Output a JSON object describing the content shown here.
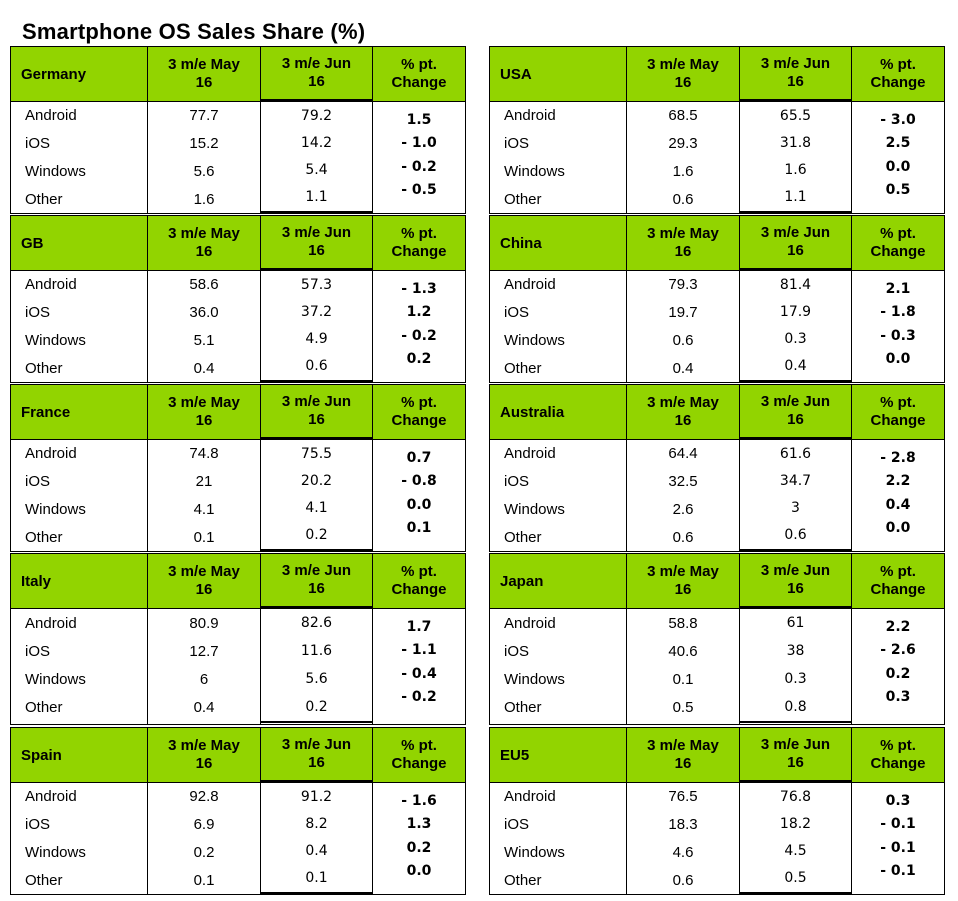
{
  "title": "Smartphone OS Sales Share (%)",
  "header_labels": {
    "col1": "3 m/e May 16",
    "col2": "3 m/e Jun 16",
    "col3": "% pt. Change"
  },
  "chart_data": {
    "type": "table",
    "title": "Smartphone OS Sales Share (%)",
    "columns": [
      "3 m/e May 16",
      "3 m/e Jun 16",
      "% pt. Change"
    ],
    "tables": [
      {
        "region": "Germany",
        "rows": [
          {
            "os": "Android",
            "may": "77.7",
            "jun": "79.2",
            "change": "1.5"
          },
          {
            "os": "iOS",
            "may": "15.2",
            "jun": "14.2",
            "change": "- 1.0"
          },
          {
            "os": "Windows",
            "may": "5.6",
            "jun": "5.4",
            "change": "- 0.2"
          },
          {
            "os": "Other",
            "may": "1.6",
            "jun": "1.1",
            "change": "- 0.5"
          }
        ]
      },
      {
        "region": "USA",
        "rows": [
          {
            "os": "Android",
            "may": "68.5",
            "jun": "65.5",
            "change": "- 3.0"
          },
          {
            "os": "iOS",
            "may": "29.3",
            "jun": "31.8",
            "change": "2.5"
          },
          {
            "os": "Windows",
            "may": "1.6",
            "jun": "1.6",
            "change": "0.0"
          },
          {
            "os": "Other",
            "may": "0.6",
            "jun": "1.1",
            "change": "0.5"
          }
        ]
      },
      {
        "region": "GB",
        "rows": [
          {
            "os": "Android",
            "may": "58.6",
            "jun": "57.3",
            "change": "- 1.3"
          },
          {
            "os": "iOS",
            "may": "36.0",
            "jun": "37.2",
            "change": "1.2"
          },
          {
            "os": "Windows",
            "may": "5.1",
            "jun": "4.9",
            "change": "- 0.2"
          },
          {
            "os": "Other",
            "may": "0.4",
            "jun": "0.6",
            "change": "0.2"
          }
        ]
      },
      {
        "region": "China",
        "rows": [
          {
            "os": "Android",
            "may": "79.3",
            "jun": "81.4",
            "change": "2.1"
          },
          {
            "os": "iOS",
            "may": "19.7",
            "jun": "17.9",
            "change": "- 1.8"
          },
          {
            "os": "Windows",
            "may": "0.6",
            "jun": "0.3",
            "change": "- 0.3"
          },
          {
            "os": "Other",
            "may": "0.4",
            "jun": "0.4",
            "change": "0.0"
          }
        ]
      },
      {
        "region": "France",
        "rows": [
          {
            "os": "Android",
            "may": "74.8",
            "jun": "75.5",
            "change": "0.7"
          },
          {
            "os": "iOS",
            "may": "21",
            "jun": "20.2",
            "change": "- 0.8"
          },
          {
            "os": "Windows",
            "may": "4.1",
            "jun": "4.1",
            "change": "0.0"
          },
          {
            "os": "Other",
            "may": "0.1",
            "jun": "0.2",
            "change": "0.1"
          }
        ]
      },
      {
        "region": "Australia",
        "rows": [
          {
            "os": "Android",
            "may": "64.4",
            "jun": "61.6",
            "change": "- 2.8"
          },
          {
            "os": "iOS",
            "may": "32.5",
            "jun": "34.7",
            "change": "2.2"
          },
          {
            "os": "Windows",
            "may": "2.6",
            "jun": "3",
            "change": "0.4"
          },
          {
            "os": "Other",
            "may": "0.6",
            "jun": "0.6",
            "change": "0.0"
          }
        ]
      },
      {
        "region": "Italy",
        "rows": [
          {
            "os": "Android",
            "may": "80.9",
            "jun": "82.6",
            "change": "1.7"
          },
          {
            "os": "iOS",
            "may": "12.7",
            "jun": "11.6",
            "change": "- 1.1"
          },
          {
            "os": "Windows",
            "may": "6",
            "jun": "5.6",
            "change": "- 0.4"
          },
          {
            "os": "Other",
            "may": "0.4",
            "jun": "0.2",
            "change": "- 0.2"
          }
        ]
      },
      {
        "region": "Japan",
        "rows": [
          {
            "os": "Android",
            "may": "58.8",
            "jun": "61",
            "change": "2.2"
          },
          {
            "os": "iOS",
            "may": "40.6",
            "jun": "38",
            "change": "- 2.6"
          },
          {
            "os": "Windows",
            "may": "0.1",
            "jun": "0.3",
            "change": "0.2"
          },
          {
            "os": "Other",
            "may": "0.5",
            "jun": "0.8",
            "change": "0.3"
          }
        ]
      },
      {
        "region": "Spain",
        "rows": [
          {
            "os": "Android",
            "may": "92.8",
            "jun": "91.2",
            "change": "- 1.6"
          },
          {
            "os": "iOS",
            "may": "6.9",
            "jun": "8.2",
            "change": "1.3"
          },
          {
            "os": "Windows",
            "may": "0.2",
            "jun": "0.4",
            "change": "0.2"
          },
          {
            "os": "Other",
            "may": "0.1",
            "jun": "0.1",
            "change": "0.0"
          }
        ]
      },
      {
        "region": "EU5",
        "rows": [
          {
            "os": "Android",
            "may": "76.5",
            "jun": "76.8",
            "change": "0.3"
          },
          {
            "os": "iOS",
            "may": "18.3",
            "jun": "18.2",
            "change": "- 0.1"
          },
          {
            "os": "Windows",
            "may": "4.6",
            "jun": "4.5",
            "change": "- 0.1"
          },
          {
            "os": "Other",
            "may": "0.6",
            "jun": "0.5",
            "change": "- 0.1"
          }
        ]
      }
    ]
  },
  "colors": {
    "header_green": "#92d400",
    "border": "#000000"
  }
}
